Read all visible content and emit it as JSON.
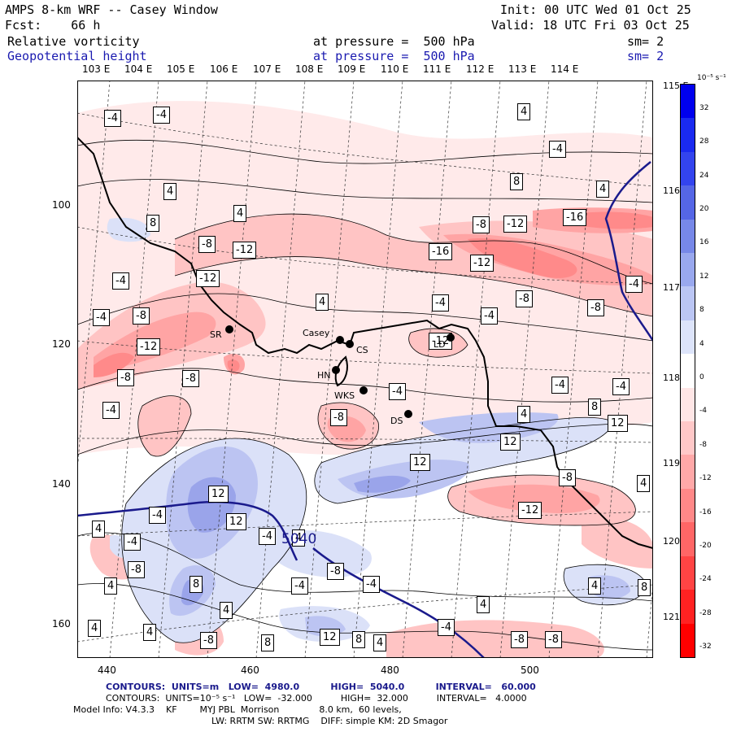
{
  "header": {
    "line1_left": "AMPS 8-km WRF -- Casey Window",
    "line1_right": "Init: 00 UTC Wed 01 Oct 25",
    "line2_left": "Fcst:    66 h",
    "line2_right": "Valid: 18 UTC Fri 03 Oct 25",
    "field1": "Relative vorticity",
    "field1_level": "at pressure =  500 hPa",
    "field1_sm": "sm= 2",
    "field2": "Geopotential height",
    "field2_level": "at pressure =  500 hPa",
    "field2_sm": "sm= 2"
  },
  "lon_labels": [
    "103 E",
    "104 E",
    "105 E",
    "106 E",
    "107 E",
    "108 E",
    "109 E",
    "110 E",
    "111 E",
    "112 E",
    "113 E",
    "114 E"
  ],
  "lat_labels_right": [
    "115 E",
    "116 E",
    "117 E",
    "118 E",
    "119 E",
    "120 E",
    "121 E"
  ],
  "x_ticks": [
    "440",
    "460",
    "480",
    "500"
  ],
  "y_ticks": [
    "100",
    "120",
    "140",
    "160"
  ],
  "colorbar": {
    "unit": "10⁻⁵ s⁻¹",
    "labels": [
      "32",
      "28",
      "24",
      "20",
      "16",
      "12",
      "8",
      "4",
      "0",
      "-4",
      "-8",
      "-12",
      "-16",
      "-20",
      "-24",
      "-28",
      "-32"
    ],
    "colors": [
      "#0000ee",
      "#1a2af0",
      "#3344ee",
      "#5566e6",
      "#7788e8",
      "#99a8ee",
      "#bbc6f4",
      "#dde4fa",
      "#ffffff",
      "#ffe6e6",
      "#ffc8c8",
      "#ffa8a8",
      "#ff8888",
      "#ff6666",
      "#ff4444",
      "#ff2222",
      "#ff0000"
    ]
  },
  "stations": [
    {
      "name": "SR"
    },
    {
      "name": "Casey"
    },
    {
      "name": "CS"
    },
    {
      "name": "HN"
    },
    {
      "name": "WKS"
    },
    {
      "name": "DS"
    },
    {
      "name": "LD"
    }
  ],
  "height_contour_label": "5040",
  "contour_labels": [
    "-4",
    "-4",
    "4",
    "4",
    "4",
    "-4",
    "8",
    "4",
    "-8",
    "-12",
    "-8",
    "-12",
    "-16",
    "-8",
    "-12",
    "-16",
    "-12",
    "-4",
    "-4",
    "4",
    "-4",
    "-8",
    "-4",
    "-12",
    "-8",
    "-8",
    "-12",
    "-4",
    "-4",
    "-8",
    "-4",
    "-8",
    "-4",
    "8",
    "12",
    "12",
    "12",
    "12",
    "-8",
    "-12",
    "4",
    "12",
    "12",
    "8",
    "-4",
    "-4",
    "4",
    "-8",
    "-4",
    "-8",
    "-4",
    "4",
    "-4",
    "4",
    "4",
    "8",
    "4",
    "8",
    "4",
    "4",
    "12",
    "8",
    "4",
    "-8",
    "-8",
    "4",
    "8",
    "-4",
    "-4",
    "-4",
    "8",
    "-8",
    "4",
    "-8",
    "-4",
    "4"
  ],
  "footer": {
    "contours1": "CONTOURS:  UNITS=m   LOW=  4980.0          HIGH=  5040.0          INTERVAL=   60.000",
    "contours2": "CONTOURS:  UNITS=10⁻⁵ s⁻¹   LOW=  -32.000          HIGH=  32.000          INTERVAL=   4.0000",
    "model": "Model Info: V4.3.3    KF        MYJ PBL  Morrison              8.0 km,  60 levels,",
    "model2": "LW: RRTM SW: RRTMG    DIFF: simple KM: 2D Smagor"
  }
}
